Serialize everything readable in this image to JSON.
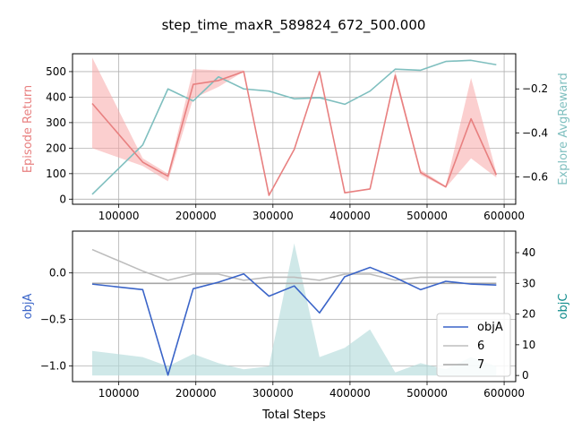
{
  "figure": {
    "title": "step_time_maxR_589824_672_500.000"
  },
  "chart_data": [
    {
      "type": "line",
      "xlabel": "",
      "ylabel_left": "Episode Return",
      "ylabel_right": "Explore AvgReward",
      "color_left": "#e88080",
      "color_right": "#7fbfbf",
      "xlim": [
        40000,
        615000
      ],
      "ylim_left": [
        -20,
        570
      ],
      "ylim_right": [
        -0.725,
        -0.04
      ],
      "xticks": [
        100000,
        200000,
        300000,
        400000,
        500000,
        600000
      ],
      "yticks_left": [
        0,
        100,
        200,
        300,
        400,
        500
      ],
      "yticks_right": [
        -0.6,
        -0.4,
        -0.2
      ],
      "grid": true,
      "x": [
        65536,
        131072,
        163840,
        196608,
        229376,
        262144,
        294912,
        327680,
        360448,
        393216,
        425984,
        458752,
        491520,
        524288,
        557056,
        589824
      ],
      "series": [
        {
          "axis": "left",
          "values": [
            375,
            145,
            90,
            450,
            465,
            500,
            15,
            195,
            500,
            25,
            40,
            485,
            105,
            48,
            315,
            95
          ],
          "band_upper": [
            555,
            160,
            100,
            510,
            505,
            505,
            15,
            195,
            500,
            25,
            40,
            500,
            115,
            52,
            475,
            105
          ],
          "band_lower": [
            200,
            130,
            70,
            395,
            440,
            500,
            15,
            195,
            500,
            25,
            40,
            470,
            95,
            45,
            160,
            85
          ]
        },
        {
          "axis": "right",
          "values": [
            -0.68,
            -0.455,
            -0.2,
            -0.255,
            -0.145,
            -0.2,
            -0.21,
            -0.245,
            -0.24,
            -0.27,
            -0.21,
            -0.11,
            -0.115,
            -0.075,
            -0.07,
            -0.09
          ]
        }
      ]
    },
    {
      "type": "line",
      "xlabel": "Total Steps",
      "ylabel_left": "objA",
      "ylabel_right": "objC",
      "color_left": "#3a64c8",
      "color_right": "#0f8c8c",
      "xlim": [
        40000,
        615000
      ],
      "ylim_left": [
        -1.17,
        0.45
      ],
      "ylim_right": [
        -2,
        47
      ],
      "xticks": [
        100000,
        200000,
        300000,
        400000,
        500000,
        600000
      ],
      "yticks_left": [
        -1.0,
        -0.5,
        0.0
      ],
      "ytick_labels_left": [
        "−1.0",
        "−0.5",
        "0.0"
      ],
      "yticks_right": [
        0,
        10,
        20,
        30,
        40
      ],
      "grid": true,
      "legend_position": "lower-right",
      "x": [
        65536,
        131072,
        163840,
        196608,
        229376,
        262144,
        294912,
        327680,
        360448,
        393216,
        425984,
        458752,
        491520,
        524288,
        557056,
        589824
      ],
      "series": [
        {
          "name": "objA",
          "axis": "left",
          "color": "#3a64c8",
          "values": [
            -0.12,
            -0.18,
            -1.1,
            -0.17,
            -0.1,
            -0.01,
            -0.25,
            -0.14,
            -0.43,
            -0.04,
            0.06,
            -0.05,
            -0.18,
            -0.09,
            -0.12,
            -0.13
          ]
        },
        {
          "name": "6",
          "axis": "right",
          "color": "#bdbdbd",
          "values": [
            41,
            34,
            31,
            33,
            33,
            31,
            32,
            32,
            31,
            33,
            33,
            31,
            32,
            32,
            32,
            32
          ]
        },
        {
          "name": "7",
          "axis": "right",
          "color": "#a6a6a6",
          "values": [
            30,
            30,
            30,
            30,
            30,
            30,
            30,
            30,
            30,
            30,
            30,
            30,
            30,
            30,
            30,
            30
          ]
        },
        {
          "name": "",
          "axis": "right",
          "kind": "area",
          "color": "#b5dcdc",
          "values": [
            8,
            6,
            3,
            7,
            4,
            2,
            3,
            43,
            6,
            9,
            15,
            1,
            4,
            2,
            6,
            3
          ]
        }
      ]
    }
  ]
}
